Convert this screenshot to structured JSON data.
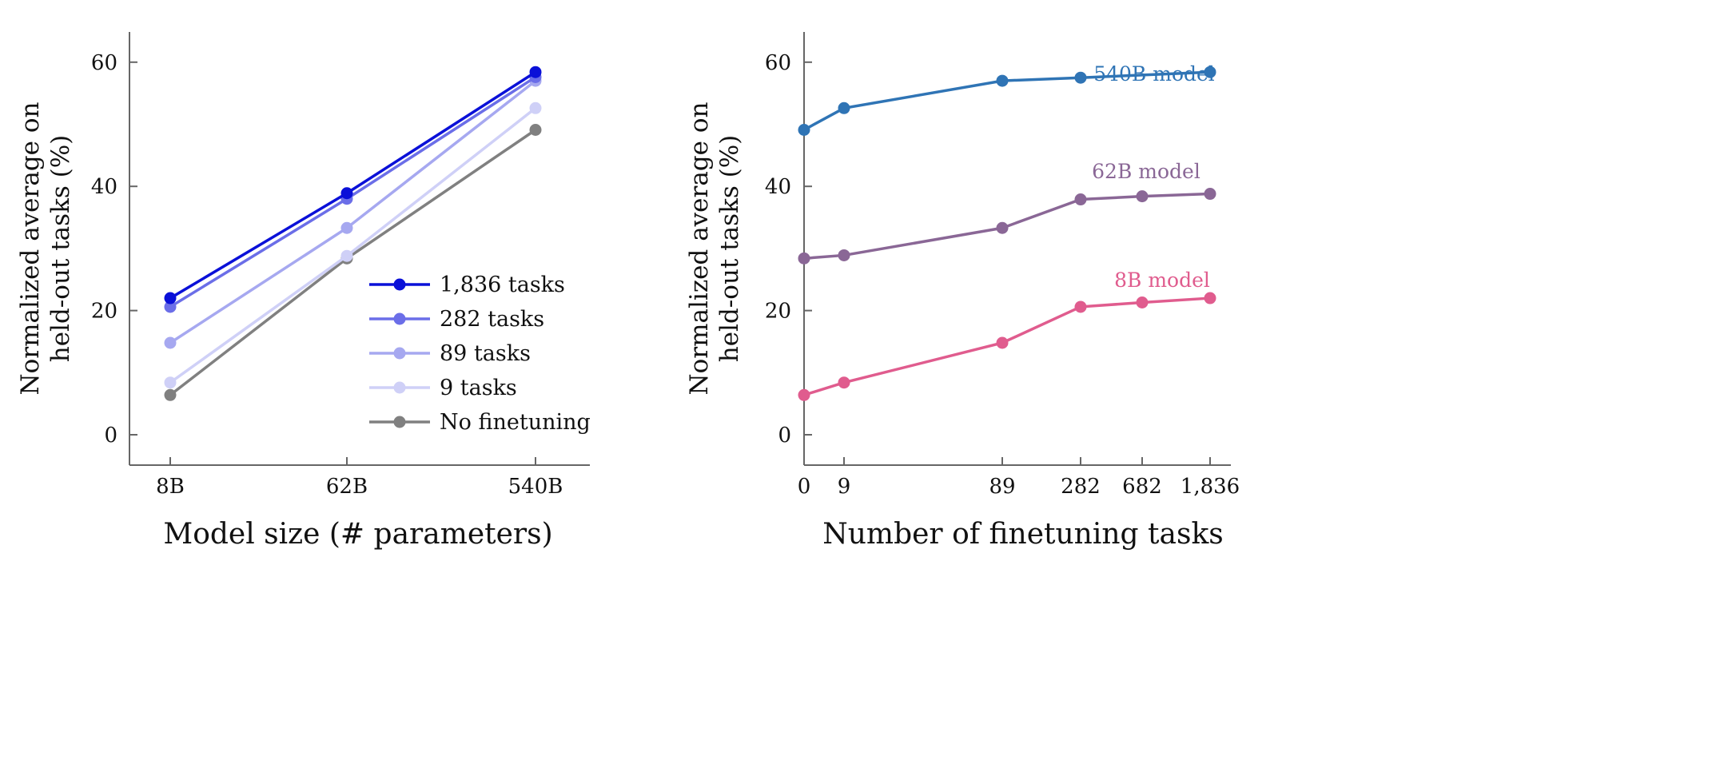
{
  "chart_data": [
    {
      "type": "line",
      "title": "",
      "xlabel": "Model size (# parameters)",
      "ylabel": [
        "Normalized average on",
        "held-out tasks (%)"
      ],
      "categories": [
        "8B",
        "62B",
        "540B"
      ],
      "yticks": [
        "0",
        "20",
        "40",
        "60"
      ],
      "ylim": [
        -5,
        65
      ],
      "legend_position": "bottom-right",
      "series": [
        {
          "name": "1,836 tasks",
          "color": "#0a10d8",
          "values": [
            22.0,
            38.9,
            58.4
          ]
        },
        {
          "name": "282 tasks",
          "color": "#6b6ee8",
          "values": [
            20.6,
            38.0,
            57.6
          ]
        },
        {
          "name": "89 tasks",
          "color": "#a6a8f0",
          "values": [
            14.8,
            33.3,
            57.0
          ]
        },
        {
          "name": "9 tasks",
          "color": "#cfd0f7",
          "values": [
            8.4,
            28.8,
            52.6
          ]
        },
        {
          "name": "No finetuning",
          "color": "#808080",
          "values": [
            6.4,
            28.4,
            49.1
          ]
        }
      ]
    },
    {
      "type": "line",
      "title": "",
      "xlabel": "Number of finetuning tasks",
      "ylabel": [
        "Normalized average on",
        "held-out tasks (%)"
      ],
      "x": [
        0,
        9,
        89,
        282,
        682,
        1836
      ],
      "xticks": [
        "0",
        "9",
        "89",
        "282",
        "682",
        "1,836"
      ],
      "yticks": [
        "0",
        "20",
        "40",
        "60"
      ],
      "ylim": [
        -5,
        65
      ],
      "series": [
        {
          "name": "540B model",
          "color": "#2f74b5",
          "values": [
            49.1,
            52.6,
            57.0,
            57.5,
            null,
            58.4
          ]
        },
        {
          "name": "62B model",
          "color": "#8a6796",
          "values": [
            28.4,
            28.9,
            33.3,
            37.9,
            38.4,
            38.8
          ]
        },
        {
          "name": "8B model",
          "color": "#e05c8e",
          "values": [
            6.4,
            8.4,
            14.8,
            20.6,
            21.3,
            22.0
          ]
        }
      ]
    }
  ]
}
